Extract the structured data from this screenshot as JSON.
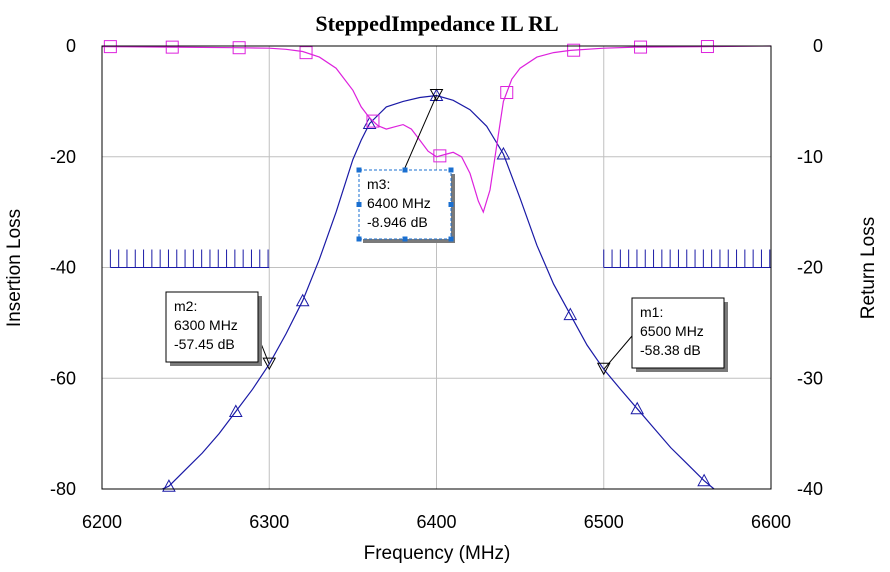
{
  "chart_data": {
    "type": "line",
    "title": "SteppedImpedance IL RL",
    "xlabel": "Frequency (MHz)",
    "ylabel_left": "Insertion Loss",
    "ylabel_right": "Return Loss",
    "xlim": [
      6200,
      6600
    ],
    "ylim_left": [
      -80,
      0
    ],
    "ylim_right": [
      -40,
      0
    ],
    "x_ticks": [
      6200,
      6300,
      6400,
      6500,
      6600
    ],
    "y_ticks_left": [
      0,
      -20,
      -40,
      -60,
      -80
    ],
    "y_ticks_right": [
      0,
      -10,
      -20,
      -30,
      -40
    ],
    "grid": true,
    "colors": {
      "insertion_loss": "#1a1aa6",
      "return_loss": "#dd22dd",
      "mask": "#1a1aa6",
      "grid": "#c0c0c0",
      "marker_box": "#1a6fd0"
    },
    "series": [
      {
        "axis": "left",
        "marker": "triangle",
        "x": [
          6236,
          6240,
          6250,
          6260,
          6270,
          6280,
          6290,
          6300,
          6310,
          6320,
          6330,
          6340,
          6350,
          6355,
          6360,
          6370,
          6380,
          6390,
          6400,
          6410,
          6420,
          6430,
          6440,
          6450,
          6460,
          6470,
          6480,
          6490,
          6500,
          6510,
          6520,
          6530,
          6540,
          6550,
          6560,
          6566
        ],
        "values": [
          -80,
          -79.5,
          -76.5,
          -73.5,
          -70,
          -66,
          -62,
          -57.45,
          -52,
          -46,
          -38.5,
          -30,
          -20.5,
          -17,
          -14,
          -11,
          -10,
          -9.3,
          -8.946,
          -9.8,
          -11.5,
          -14.5,
          -19.5,
          -27.5,
          -36,
          -43,
          -48.5,
          -54,
          -58.38,
          -62,
          -65.5,
          -69,
          -72.5,
          -75.5,
          -78.5,
          -80
        ],
        "marker_x": [
          6240,
          6280,
          6320,
          6360,
          6400,
          6440,
          6480,
          6520,
          6560
        ]
      },
      {
        "axis": "right",
        "marker": "square",
        "x": [
          6200,
          6240,
          6280,
          6300,
          6310,
          6320,
          6330,
          6340,
          6350,
          6355,
          6360,
          6365,
          6370,
          6375,
          6380,
          6385,
          6390,
          6395,
          6400,
          6405,
          6410,
          6415,
          6420,
          6425,
          6428,
          6432,
          6436,
          6440,
          6445,
          6450,
          6460,
          6470,
          6480,
          6500,
          6520,
          6560,
          6600
        ],
        "values": [
          -0.05,
          -0.1,
          -0.15,
          -0.2,
          -0.3,
          -0.5,
          -1,
          -2,
          -4,
          -5.5,
          -6.5,
          -7.2,
          -7.5,
          -7.3,
          -7.1,
          -7.5,
          -8.5,
          -9.5,
          -10,
          -9.8,
          -9.6,
          -10,
          -11.5,
          -14,
          -15,
          -13,
          -9,
          -5,
          -3,
          -2,
          -1,
          -0.6,
          -0.4,
          -0.2,
          -0.1,
          -0.05,
          0
        ],
        "marker_x": [
          6205,
          6242,
          6282,
          6322,
          6362,
          6402,
          6442,
          6482,
          6522,
          6562
        ]
      }
    ],
    "masks": [
      {
        "x_start": 6205,
        "x_end": 6300,
        "value": -40
      },
      {
        "x_start": 6500,
        "x_end": 6600,
        "value": -40
      }
    ],
    "annotations": [
      {
        "name": "m2",
        "freq_label": "6300 MHz",
        "value_label": "-57.45 dB",
        "x": 6300,
        "y": -57.45,
        "marker": "down-triangle"
      },
      {
        "name": "m3",
        "freq_label": "6400 MHz",
        "value_label": "-8.946 dB",
        "x": 6400,
        "y": -8.946,
        "marker": "down-triangle",
        "selected": true
      },
      {
        "name": "m1",
        "freq_label": "6500 MHz",
        "value_label": "-58.38 dB",
        "x": 6500,
        "y": -58.38,
        "marker": "down-triangle"
      }
    ],
    "marker_labels": {
      "m2": {
        "title": "m2:"
      },
      "m3": {
        "title": "m3:"
      },
      "m1": {
        "title": "m1:"
      }
    }
  }
}
